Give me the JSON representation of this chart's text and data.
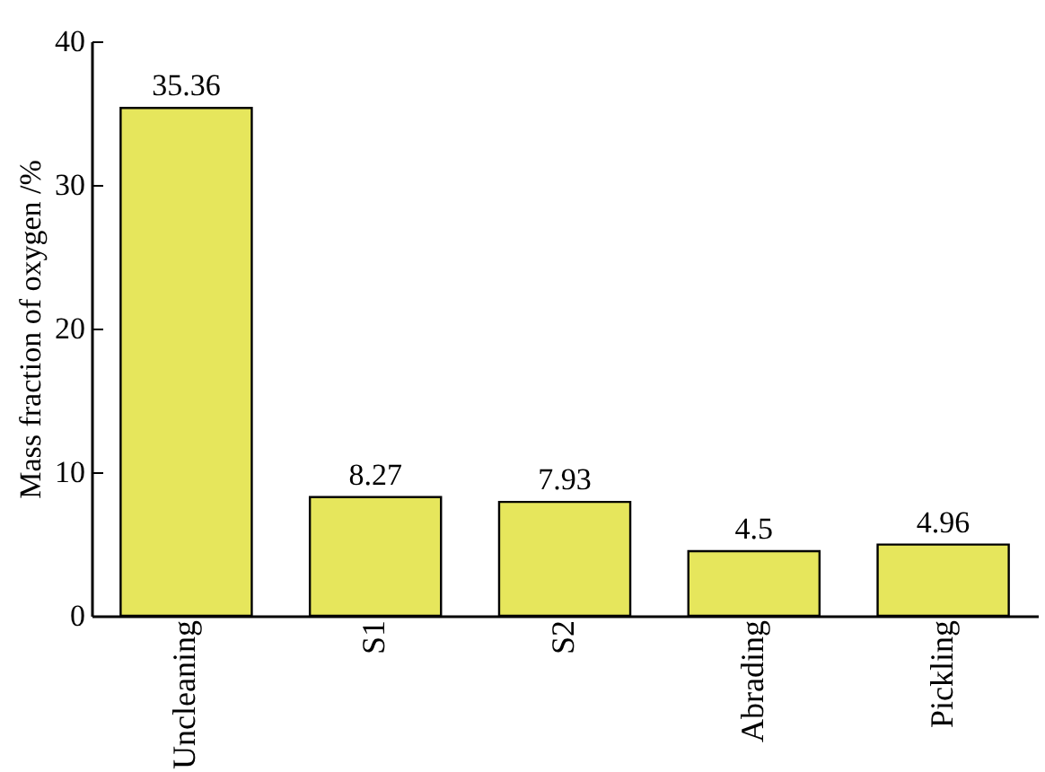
{
  "chart_data": {
    "type": "bar",
    "ylabel": "Mass fraction of oxygen /%",
    "categories": [
      "Uncleaning",
      "S1",
      "S2",
      "Abrading",
      "Pickling"
    ],
    "values": [
      35.36,
      8.27,
      7.93,
      4.5,
      4.96
    ],
    "color": "#e6e65c",
    "ylim": [
      0,
      40
    ],
    "yticks": [
      0,
      10,
      20,
      30,
      40
    ],
    "data_labels": true
  }
}
